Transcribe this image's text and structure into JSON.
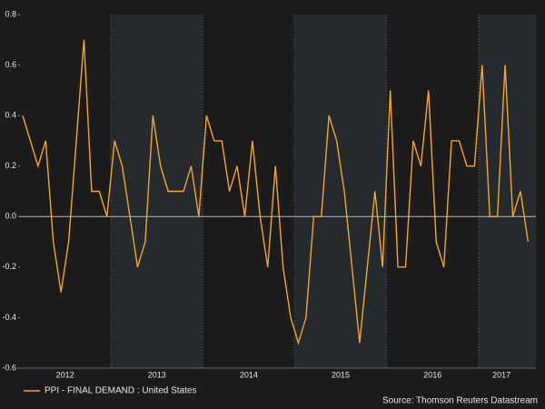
{
  "chart_data": {
    "type": "line",
    "categories": [
      null,
      null,
      null,
      null,
      null,
      null,
      "2012",
      null,
      null,
      null,
      null,
      null,
      null,
      null,
      null,
      null,
      null,
      null,
      "2013",
      null,
      null,
      null,
      null,
      null,
      null,
      null,
      null,
      null,
      null,
      null,
      "2014",
      null,
      null,
      null,
      null,
      null,
      null,
      null,
      null,
      null,
      null,
      null,
      "2015",
      null,
      null,
      null,
      null,
      null,
      null,
      null,
      null,
      null,
      null,
      null,
      "2016",
      null,
      null,
      null,
      null,
      null,
      null,
      null,
      null,
      "2017",
      null,
      null,
      null
    ],
    "series": [
      {
        "name": "PPI - FINAL DEMAND : United States",
        "color": "#f5a623",
        "values": [
          0.4,
          0.3,
          0.2,
          0.3,
          -0.1,
          -0.3,
          -0.1,
          0.3,
          0.7,
          0.1,
          0.1,
          0.0,
          0.3,
          0.2,
          0.0,
          -0.2,
          -0.1,
          0.4,
          0.2,
          0.1,
          0.1,
          0.1,
          0.2,
          0.0,
          0.4,
          0.3,
          0.3,
          0.1,
          0.2,
          0.0,
          0.3,
          0.0,
          -0.2,
          0.2,
          -0.2,
          -0.4,
          -0.5,
          -0.4,
          0.0,
          0.0,
          0.4,
          0.3,
          0.1,
          -0.2,
          -0.5,
          -0.2,
          0.1,
          -0.2,
          0.5,
          -0.2,
          -0.2,
          0.3,
          0.2,
          0.5,
          -0.1,
          -0.2,
          0.3,
          0.3,
          0.2,
          0.2,
          0.6,
          0.0,
          0.0,
          0.6,
          0.0,
          0.1,
          -0.1
        ]
      }
    ],
    "ylim": [
      -0.6,
      0.8
    ],
    "yticks": [
      -0.6,
      -0.4,
      -0.2,
      {
        "value": 0,
        "label": "0.0"
      },
      0.2,
      0.4,
      0.6,
      0.8
    ],
    "source": "Source: Thomson Reuters Datastream"
  }
}
